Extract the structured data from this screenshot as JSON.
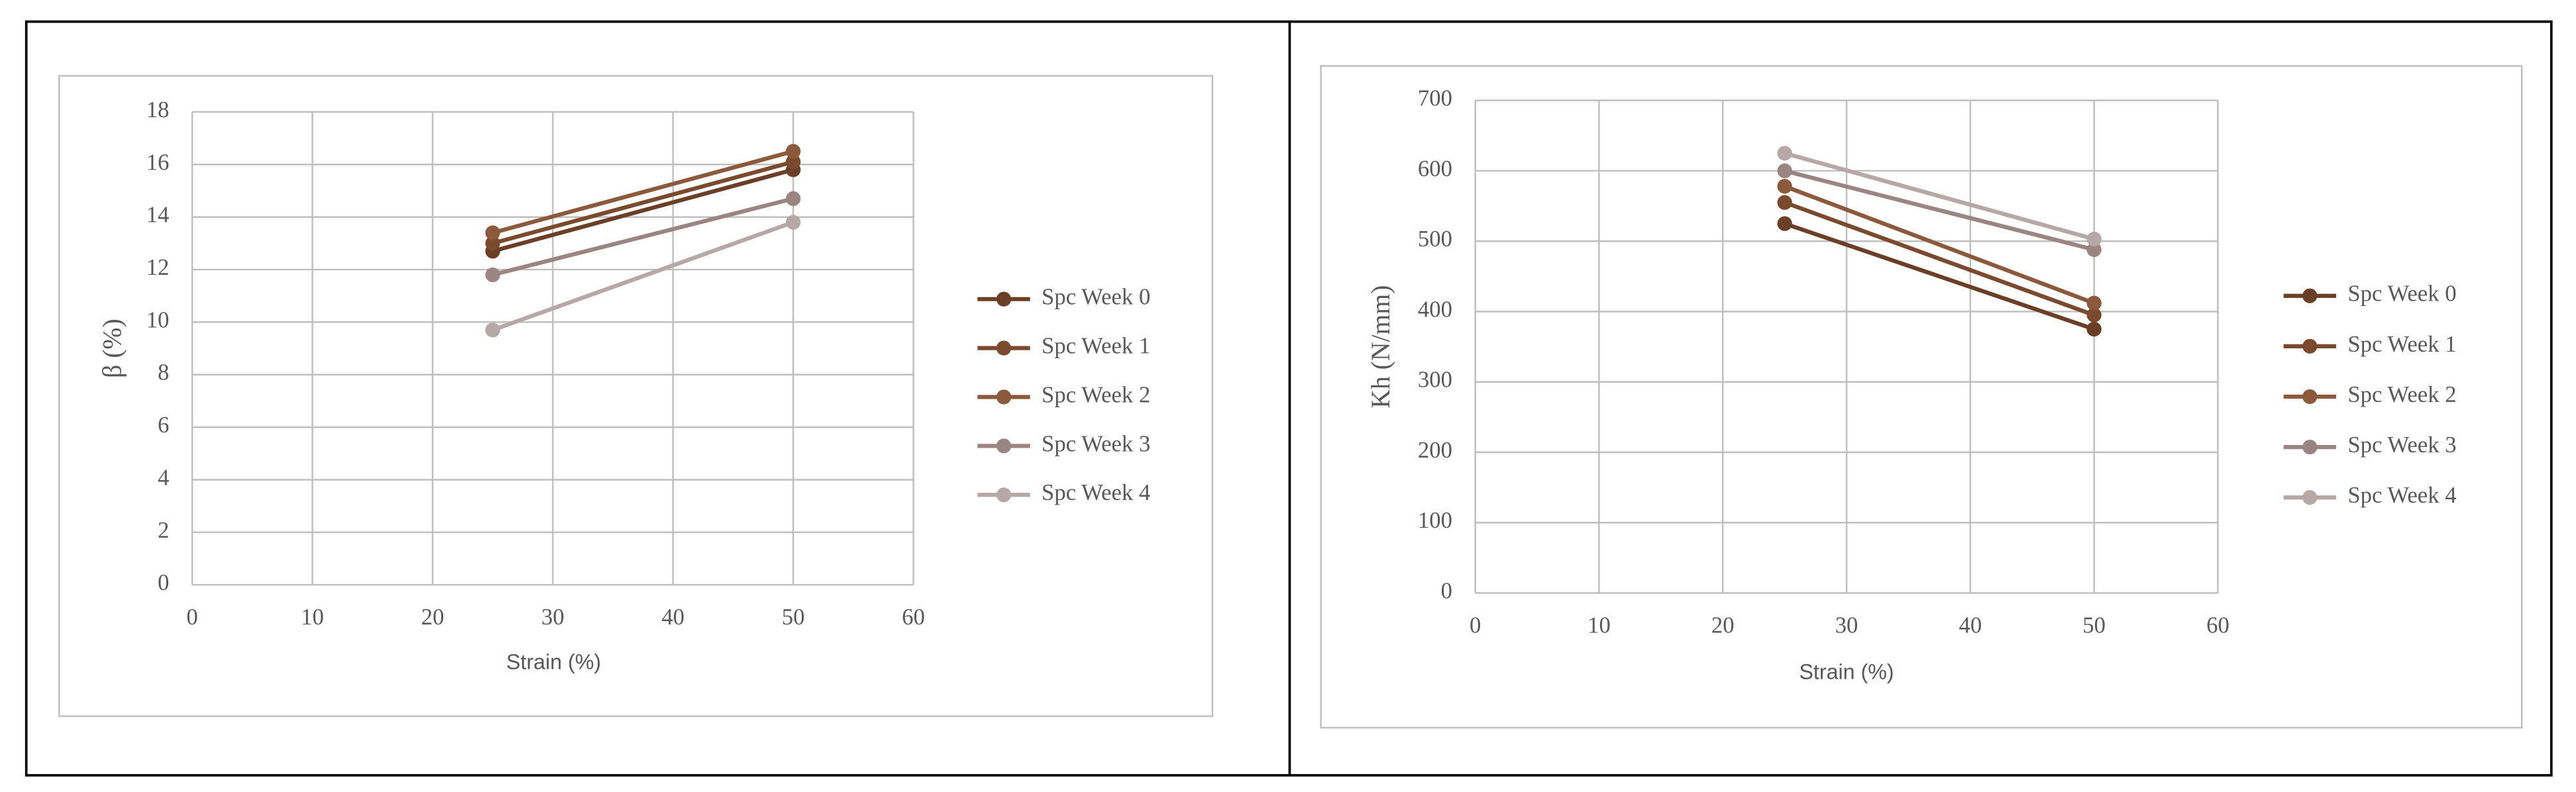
{
  "chart_data": [
    {
      "type": "line",
      "x_label": "Strain (%)",
      "y_label": "β (%)",
      "x": [
        25,
        50
      ],
      "series": [
        {
          "name": "Spc Week 0",
          "color": "#6b3f26",
          "values": [
            12.7,
            15.8
          ]
        },
        {
          "name": "Spc Week 1",
          "color": "#7a4a2e",
          "values": [
            13.0,
            16.1
          ]
        },
        {
          "name": "Spc Week 2",
          "color": "#8b5a3c",
          "values": [
            13.4,
            16.5
          ]
        },
        {
          "name": "Spc Week 3",
          "color": "#9a8582",
          "values": [
            11.8,
            14.7
          ]
        },
        {
          "name": "Spc Week 4",
          "color": "#b5a8a6",
          "values": [
            9.7,
            13.8
          ]
        }
      ],
      "xlim": [
        0,
        60
      ],
      "xticks": [
        0,
        10,
        20,
        30,
        40,
        50,
        60
      ],
      "ylim": [
        0,
        18
      ],
      "yticks": [
        0,
        2,
        4,
        6,
        8,
        10,
        12,
        14,
        16,
        18
      ],
      "grid": true,
      "legend": "right"
    },
    {
      "type": "line",
      "x_label": "Strain (%)",
      "y_label": "Kh (N/mm)",
      "x": [
        25,
        50
      ],
      "series": [
        {
          "name": "Spc Week 0",
          "color": "#6b3f26",
          "values": [
            525,
            375
          ]
        },
        {
          "name": "Spc Week 1",
          "color": "#7a4a2e",
          "values": [
            555,
            395
          ]
        },
        {
          "name": "Spc Week 2",
          "color": "#8b5a3c",
          "values": [
            578,
            412
          ]
        },
        {
          "name": "Spc Week 3",
          "color": "#9a8582",
          "values": [
            600,
            488
          ]
        },
        {
          "name": "Spc Week 4",
          "color": "#b5a8a6",
          "values": [
            625,
            503
          ]
        }
      ],
      "xlim": [
        0,
        60
      ],
      "xticks": [
        0,
        10,
        20,
        30,
        40,
        50,
        60
      ],
      "ylim": [
        0,
        700
      ],
      "yticks": [
        0,
        100,
        200,
        300,
        400,
        500,
        600,
        700
      ],
      "grid": true,
      "legend": "right"
    }
  ]
}
